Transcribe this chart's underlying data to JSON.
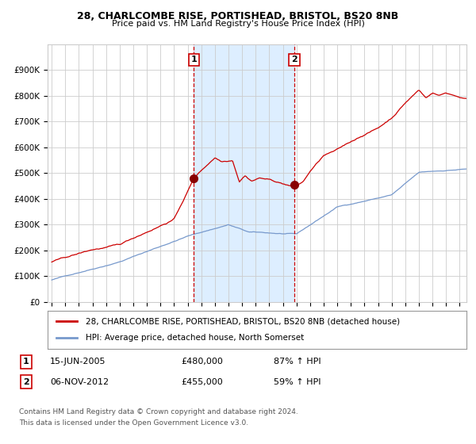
{
  "title_line1": "28, CHARLCOMBE RISE, PORTISHEAD, BRISTOL, BS20 8NB",
  "title_line2": "Price paid vs. HM Land Registry's House Price Index (HPI)",
  "legend_red": "28, CHARLCOMBE RISE, PORTISHEAD, BRISTOL, BS20 8NB (detached house)",
  "legend_blue": "HPI: Average price, detached house, North Somerset",
  "annotation1_label": "1",
  "annotation1_date": "15-JUN-2005",
  "annotation1_price": "£480,000",
  "annotation1_hpi": "87% ↑ HPI",
  "annotation2_label": "2",
  "annotation2_date": "06-NOV-2012",
  "annotation2_price": "£455,000",
  "annotation2_hpi": "59% ↑ HPI",
  "footnote_line1": "Contains HM Land Registry data © Crown copyright and database right 2024.",
  "footnote_line2": "This data is licensed under the Open Government Licence v3.0.",
  "red_color": "#cc0000",
  "blue_color": "#7799cc",
  "shade_color": "#ddeeff",
  "vline_color": "#cc0000",
  "grid_color": "#cccccc",
  "bg_color": "#ffffff",
  "marker_color": "#880000",
  "ylim": [
    0,
    1000000
  ],
  "yticks": [
    0,
    100000,
    200000,
    300000,
    400000,
    500000,
    600000,
    700000,
    800000,
    900000
  ],
  "ytick_labels": [
    "£0",
    "£100K",
    "£200K",
    "£300K",
    "£400K",
    "£500K",
    "£600K",
    "£700K",
    "£800K",
    "£900K"
  ],
  "sale1_year": 2005.45,
  "sale2_year": 2012.84,
  "sale1_value": 480000,
  "sale2_value": 455000,
  "xmin": 1994.7,
  "xmax": 2025.5
}
